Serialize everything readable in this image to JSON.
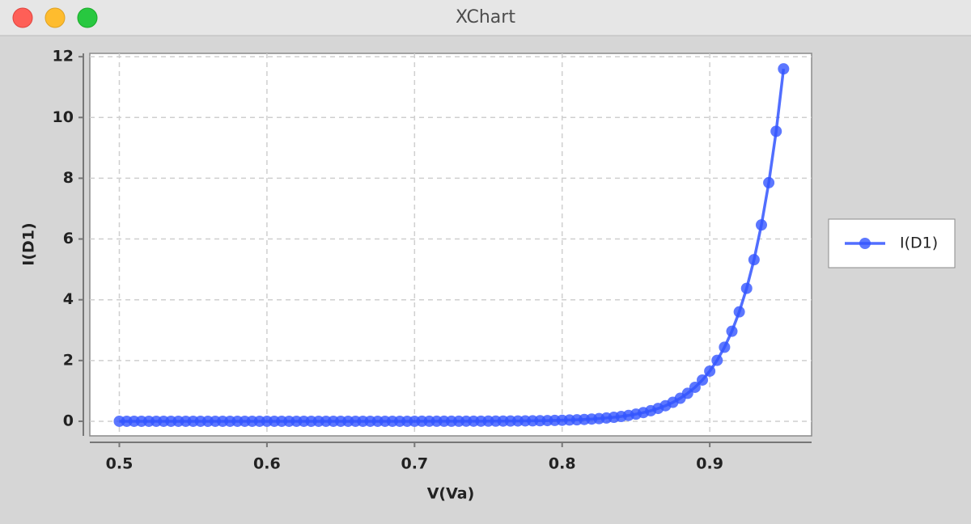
{
  "window": {
    "title": "XChart"
  },
  "chart_data": {
    "type": "line",
    "x_label": "V(Va)",
    "y_label": "I(D1)",
    "x": [
      0.5,
      0.505,
      0.51,
      0.515,
      0.52,
      0.525,
      0.53,
      0.535,
      0.54,
      0.545,
      0.55,
      0.555,
      0.56,
      0.565,
      0.57,
      0.575,
      0.58,
      0.585,
      0.59,
      0.595,
      0.6,
      0.605,
      0.61,
      0.615,
      0.62,
      0.625,
      0.63,
      0.635,
      0.64,
      0.645,
      0.65,
      0.655,
      0.66,
      0.665,
      0.67,
      0.675,
      0.68,
      0.685,
      0.69,
      0.695,
      0.7,
      0.705,
      0.71,
      0.715,
      0.72,
      0.725,
      0.73,
      0.735,
      0.74,
      0.745,
      0.75,
      0.755,
      0.76,
      0.765,
      0.77,
      0.775,
      0.78,
      0.785,
      0.79,
      0.795,
      0.8,
      0.805,
      0.81,
      0.815,
      0.82,
      0.825,
      0.83,
      0.835,
      0.84,
      0.845,
      0.85,
      0.855,
      0.86,
      0.865,
      0.87,
      0.875,
      0.88,
      0.885,
      0.89,
      0.895,
      0.9,
      0.905,
      0.91,
      0.915,
      0.92,
      0.925,
      0.93,
      0.935,
      0.94,
      0.945,
      0.95
    ],
    "series": [
      {
        "name": "I(D1)",
        "color": "#3355ff",
        "values": [
          0,
          0,
          0,
          0,
          0,
          0,
          0,
          0,
          0,
          0,
          0,
          0,
          0,
          0,
          0,
          0,
          0,
          0,
          0,
          0,
          0,
          0,
          0,
          0,
          0,
          0,
          0,
          0,
          0,
          0,
          0,
          0,
          0,
          0,
          0,
          0,
          0,
          0,
          0,
          0,
          0,
          0.001,
          0.001,
          0.001,
          0.001,
          0.002,
          0.002,
          0.003,
          0.003,
          0.004,
          0.005,
          0.006,
          0.007,
          0.009,
          0.01,
          0.013,
          0.015,
          0.019,
          0.023,
          0.028,
          0.033,
          0.041,
          0.049,
          0.06,
          0.073,
          0.089,
          0.108,
          0.131,
          0.159,
          0.193,
          0.235,
          0.286,
          0.347,
          0.422,
          0.512,
          0.623,
          0.757,
          0.92,
          1.118,
          1.358,
          1.651,
          2.006,
          2.438,
          2.963,
          3.601,
          4.376,
          5.318,
          6.463,
          7.854,
          9.545,
          11.6
        ]
      }
    ],
    "xlim": [
      0.48,
      0.969
    ],
    "ylim": [
      -0.48,
      12.11
    ],
    "xticks": [
      0.5,
      0.6,
      0.7,
      0.8,
      0.9
    ],
    "yticks": [
      0,
      2,
      4,
      6,
      8,
      10,
      12
    ],
    "grid": true,
    "legend": "right"
  }
}
